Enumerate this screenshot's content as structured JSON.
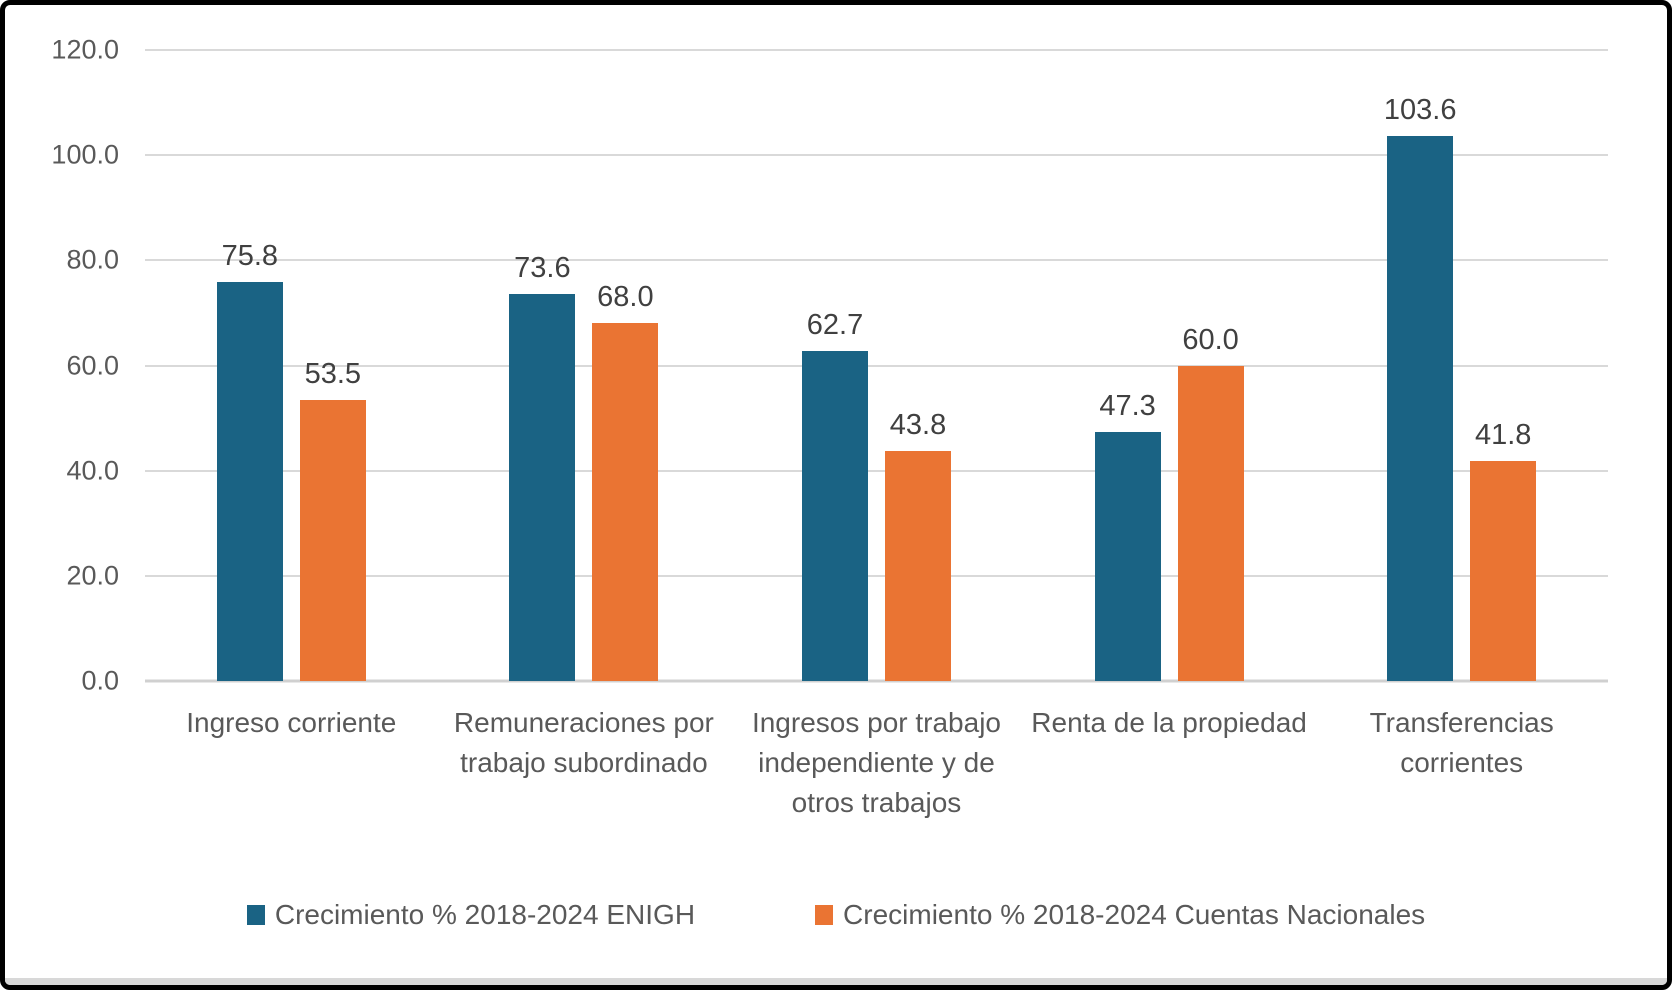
{
  "chart_data": {
    "type": "bar",
    "title": "",
    "categories": [
      "Ingreso corriente",
      "Remuneraciones por trabajo subordinado",
      "Ingresos por trabajo independiente y de otros trabajos",
      "Renta de la propiedad",
      "Transferencias corrientes"
    ],
    "series": [
      {
        "name": "Crecimiento % 2018-2024 ENIGH",
        "color": "#1A6384",
        "values": [
          75.8,
          73.6,
          62.7,
          47.3,
          103.6
        ]
      },
      {
        "name": "Crecimiento % 2018-2024 Cuentas Nacionales",
        "color": "#EA7433",
        "values": [
          53.5,
          68.0,
          43.8,
          60.0,
          41.8
        ]
      }
    ],
    "data_labels": {
      "enabled": true,
      "decimals": 1,
      "values_series_1": [
        "75.8",
        "73.6",
        "62.7",
        "47.3",
        "103.6"
      ],
      "values_series_2": [
        "53.5",
        "68.0",
        "43.8",
        "60.0",
        "41.8"
      ]
    },
    "y_axis": {
      "min": 0,
      "max": 120,
      "step": 20,
      "tick_labels": [
        "0.0",
        "20.0",
        "40.0",
        "60.0",
        "80.0",
        "100.0",
        "120.0"
      ]
    },
    "xlabel": "",
    "ylabel": "",
    "grid": true,
    "legend_position": "bottom"
  },
  "colors": {
    "background": "#FFFFFF",
    "frame_border": "#000000",
    "gridline": "#D9D9D9",
    "axis_baseline": "#D0D0D0",
    "tick_text": "#595959",
    "category_text": "#595959",
    "data_label_text": "#404040",
    "legend_text": "#595959",
    "bottom_strip": "#D8D8D8"
  }
}
